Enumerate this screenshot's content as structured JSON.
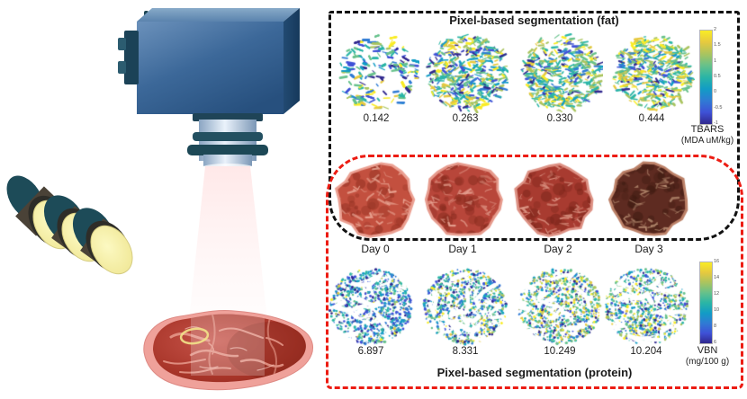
{
  "figure": {
    "panel_fat": {
      "title": "Pixel-based segmentation (fat)",
      "values": [
        "0.142",
        "0.263",
        "0.330",
        "0.444"
      ],
      "colorbar": {
        "name": "TBARS",
        "unit": "(MDA uM/kg)",
        "ticks": [
          "2",
          "1.5",
          "1",
          "0.5",
          "0",
          "-0.5",
          "-1"
        ]
      }
    },
    "meat_row": {
      "days": [
        "Day 0",
        "Day 1",
        "Day 2",
        "Day 3"
      ],
      "day_colors": [
        {
          "base": "#c3503f",
          "rim": "#eba092",
          "dark": "#8d2d1f",
          "marble": "#edad9b"
        },
        {
          "base": "#b8463a",
          "rim": "#e69a8c",
          "dark": "#84291c",
          "marble": "#e8a695"
        },
        {
          "base": "#a83b30",
          "rim": "#dd9184",
          "dark": "#762318",
          "marble": "#e19c8b"
        },
        {
          "base": "#5e2b21",
          "rim": "#bc8168",
          "dark": "#3c1a11",
          "marble": "#c49a7c"
        }
      ]
    },
    "panel_protein": {
      "title": "Pixel-based segmentation (protein)",
      "values": [
        "6.897",
        "8.331",
        "10.249",
        "10.204"
      ],
      "colorbar": {
        "name": "VBN",
        "unit": "(mg/100 g)",
        "ticks": [
          "16",
          "14",
          "12",
          "10",
          "8",
          "6"
        ]
      }
    },
    "style": {
      "box_fat_border": "#111111",
      "box_protein_border": "#ec1c13",
      "parula": [
        "#30288e",
        "#3f51d7",
        "#2f7bd4",
        "#129cc5",
        "#2ab5a6",
        "#66c18b",
        "#aac45f",
        "#e6c93f",
        "#f9ec25"
      ]
    }
  },
  "chart_data": [
    {
      "type": "heatmap",
      "title": "Pixel-based segmentation (fat)",
      "categories": [
        "Day 0",
        "Day 1",
        "Day 2",
        "Day 3"
      ],
      "values": [
        0.142,
        0.263,
        0.33,
        0.444
      ],
      "ylabel": "TBARS (MDA uM/kg)",
      "colorbar_range": [
        -1,
        2
      ],
      "legend_position": "right"
    },
    {
      "type": "heatmap",
      "title": "Pixel-based segmentation (protein)",
      "categories": [
        "Day 0",
        "Day 1",
        "Day 2",
        "Day 3"
      ],
      "values": [
        6.897,
        8.331,
        10.249,
        10.204
      ],
      "ylabel": "VBN (mg/100 g)",
      "colorbar_range": [
        6,
        16
      ],
      "legend_position": "right"
    }
  ]
}
